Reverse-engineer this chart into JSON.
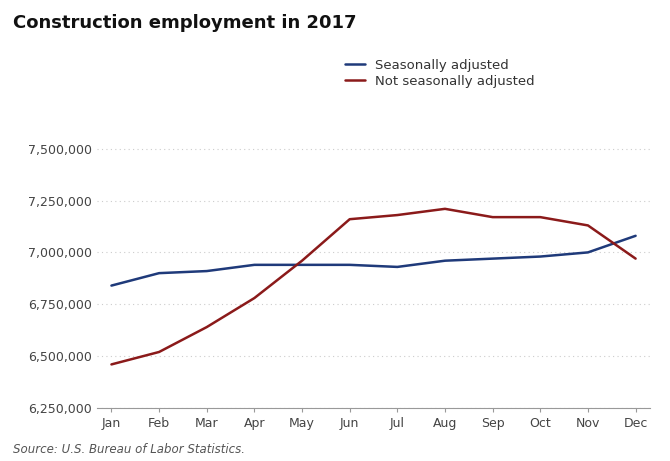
{
  "title": "Construction employment in 2017",
  "source": "Source: U.S. Bureau of Labor Statistics.",
  "months": [
    "Jan",
    "Feb",
    "Mar",
    "Apr",
    "May",
    "Jun",
    "Jul",
    "Aug",
    "Sep",
    "Oct",
    "Nov",
    "Dec"
  ],
  "seasonally_adjusted": [
    6840000,
    6900000,
    6910000,
    6940000,
    6940000,
    6940000,
    6930000,
    6960000,
    6970000,
    6980000,
    7000000,
    7080000
  ],
  "not_seasonally_adjusted": [
    6460000,
    6520000,
    6640000,
    6780000,
    6960000,
    7160000,
    7180000,
    7210000,
    7170000,
    7170000,
    7130000,
    6970000
  ],
  "sa_color": "#1f3a7a",
  "nsa_color": "#8b1a1a",
  "sa_label": "Seasonally adjusted",
  "nsa_label": "Not seasonally adjusted",
  "ylim_min": 6250000,
  "ylim_max": 7550000,
  "yticks": [
    6250000,
    6500000,
    6750000,
    7000000,
    7250000,
    7500000
  ],
  "line_width": 1.8,
  "title_fontsize": 13,
  "legend_fontsize": 9.5,
  "tick_fontsize": 9,
  "source_fontsize": 8.5,
  "background_color": "#ffffff",
  "grid_color": "#cccccc"
}
